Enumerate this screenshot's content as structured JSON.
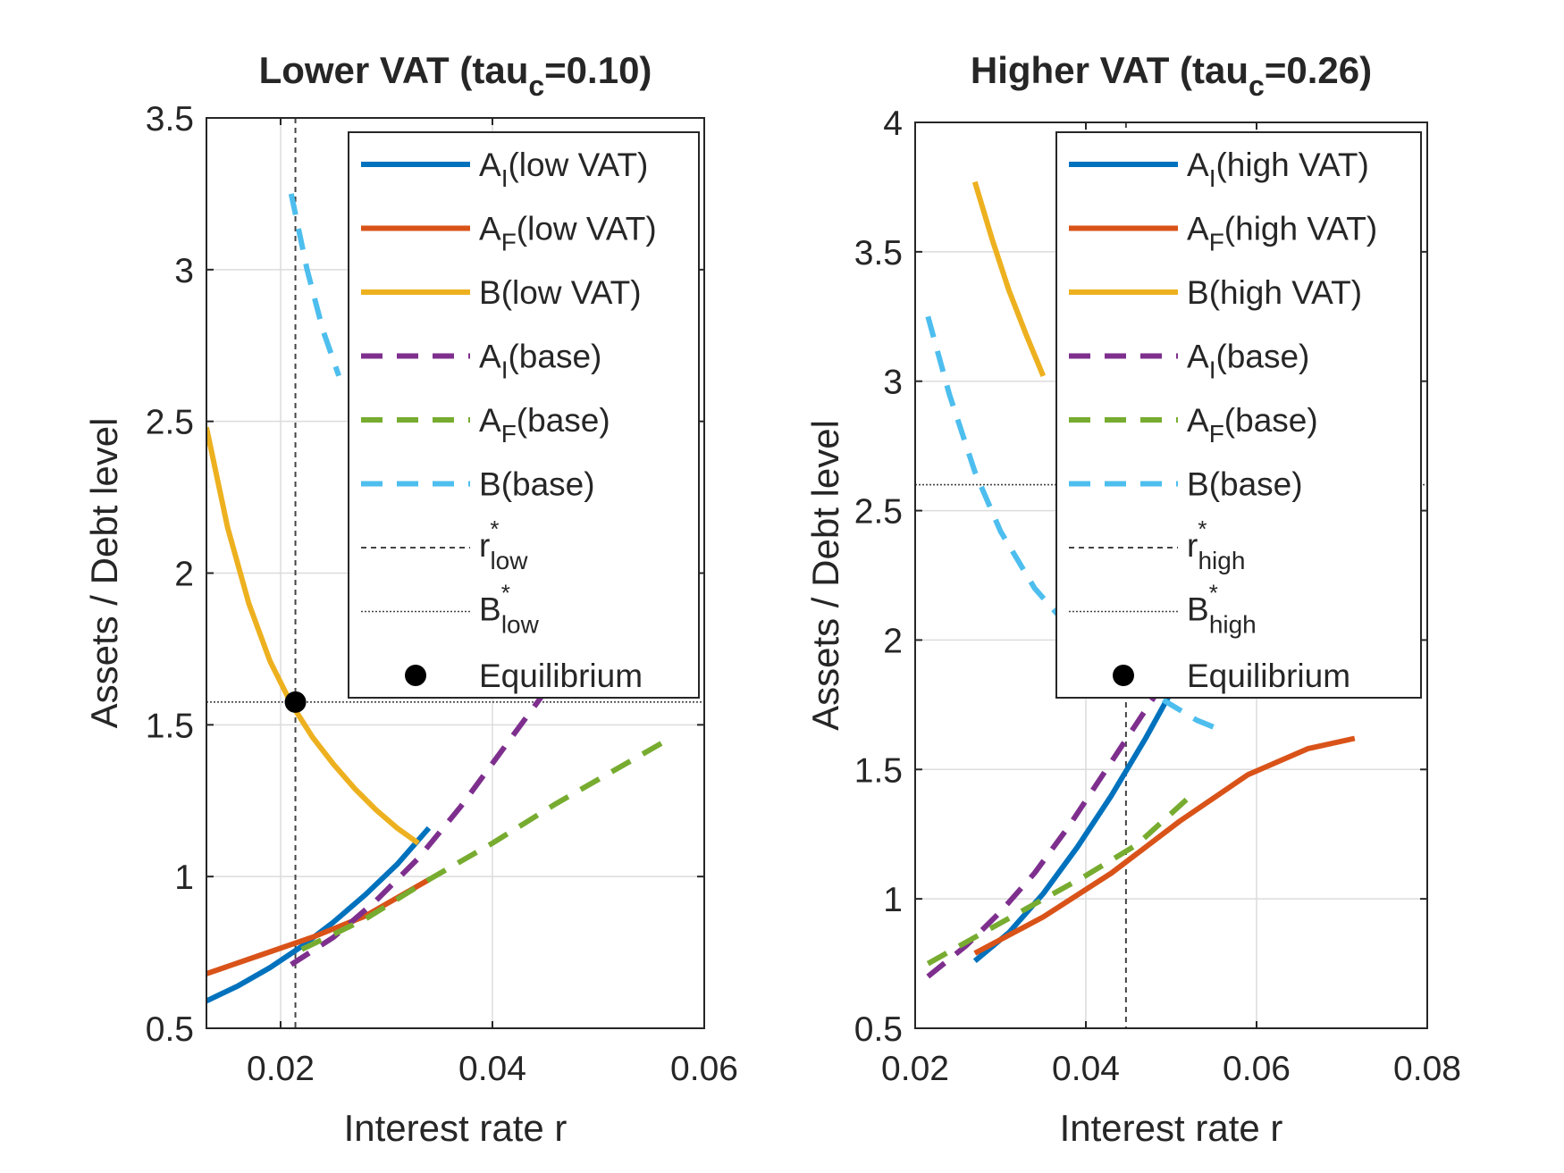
{
  "chart_data": [
    {
      "type": "line",
      "title": "Lower VAT (tau",
      "title_sub": "c",
      "title_tail": "=0.10)",
      "xlabel": "Interest rate r",
      "ylabel": "Assets / Debt level",
      "xlim": [
        0.013,
        0.06
      ],
      "ylim": [
        0.5,
        3.5
      ],
      "xticks": [
        0.02,
        0.04,
        0.06
      ],
      "xtick_labels": [
        "0.02",
        "0.04",
        "0.06"
      ],
      "yticks": [
        0.5,
        1,
        1.5,
        2,
        2.5,
        3,
        3.5
      ],
      "ytick_labels": [
        "0.5",
        "1",
        "1.5",
        "2",
        "2.5",
        "3",
        "3.5"
      ],
      "grid": true,
      "legend_position": "top-right",
      "series": [
        {
          "name": "A_I(low VAT)",
          "main": "A",
          "sub": "I",
          "tail": "(low VAT)",
          "color": "#0072BD",
          "dash": "solid",
          "x": [
            0.013,
            0.016,
            0.019,
            0.022,
            0.025,
            0.028,
            0.031,
            0.034
          ],
          "y": [
            0.59,
            0.64,
            0.7,
            0.77,
            0.85,
            0.94,
            1.04,
            1.16
          ]
        },
        {
          "name": "A_F(low VAT)",
          "main": "A",
          "sub": "F",
          "tail": "(low VAT)",
          "color": "#D95319",
          "dash": "solid",
          "x": [
            0.013,
            0.018,
            0.023,
            0.028,
            0.034
          ],
          "y": [
            0.68,
            0.74,
            0.8,
            0.87,
            0.99
          ]
        },
        {
          "name": "B(low VAT)",
          "main": "B",
          "sub": "",
          "tail": "(low VAT)",
          "color": "#EDB120",
          "dash": "solid",
          "x": [
            0.013,
            0.015,
            0.017,
            0.019,
            0.021,
            0.023,
            0.025,
            0.027,
            0.029,
            0.031,
            0.033
          ],
          "y": [
            2.48,
            2.15,
            1.9,
            1.71,
            1.57,
            1.46,
            1.37,
            1.29,
            1.22,
            1.16,
            1.11
          ]
        },
        {
          "name": "A_I(base)",
          "main": "A",
          "sub": "I",
          "tail": "(base)",
          "color": "#7E2F8E",
          "dash": "dashed",
          "x": [
            0.021,
            0.025,
            0.029,
            0.033,
            0.037,
            0.041,
            0.045
          ],
          "y": [
            0.71,
            0.8,
            0.92,
            1.06,
            1.23,
            1.42,
            1.61
          ]
        },
        {
          "name": "A_F(base)",
          "main": "A",
          "sub": "F",
          "tail": "(base)",
          "color": "#77AC30",
          "dash": "dashed",
          "x": [
            0.022,
            0.028,
            0.034,
            0.04,
            0.046,
            0.052,
            0.056
          ],
          "y": [
            0.76,
            0.86,
            0.99,
            1.11,
            1.24,
            1.36,
            1.44
          ]
        },
        {
          "name": "B(base)",
          "main": "B",
          "sub": "",
          "tail": "(base)",
          "color": "#4DBEEE",
          "dash": "dashed",
          "x": [
            0.021,
            0.0225,
            0.024,
            0.0255
          ],
          "y": [
            3.25,
            3.0,
            2.8,
            2.65
          ]
        }
      ],
      "r_star": 0.0214,
      "B_star": 1.575,
      "r_star_label": {
        "main": "r",
        "sup": "*",
        "sub": "low"
      },
      "B_star_label": {
        "main": "B",
        "sup": "*",
        "sub": "low"
      },
      "equilibrium_label": "Equilibrium",
      "equilibrium": {
        "x": 0.0214,
        "y": 1.575
      }
    },
    {
      "type": "line",
      "title": "Higher VAT (tau",
      "title_sub": "c",
      "title_tail": "=0.26)",
      "xlabel": "Interest rate r",
      "ylabel": "Assets / Debt level",
      "xlim": [
        0.02,
        0.08
      ],
      "ylim": [
        0.5,
        4.0
      ],
      "xticks": [
        0.02,
        0.04,
        0.06,
        0.08
      ],
      "xtick_labels": [
        "0.02",
        "0.04",
        "0.06",
        "0.08"
      ],
      "yticks": [
        0.5,
        1,
        1.5,
        2,
        2.5,
        3,
        3.5,
        4
      ],
      "ytick_labels": [
        "0.5",
        "1",
        "1.5",
        "2",
        "2.5",
        "3",
        "3.5",
        "4"
      ],
      "grid": true,
      "legend_position": "top-right",
      "series": [
        {
          "name": "A_I(high VAT)",
          "main": "A",
          "sub": "I",
          "tail": "(high VAT)",
          "color": "#0072BD",
          "dash": "solid",
          "x": [
            0.027,
            0.031,
            0.035,
            0.039,
            0.043,
            0.047,
            0.05
          ],
          "y": [
            0.76,
            0.87,
            1.02,
            1.2,
            1.4,
            1.62,
            1.8
          ]
        },
        {
          "name": "A_F(high VAT)",
          "main": "A",
          "sub": "F",
          "tail": "(high VAT)",
          "color": "#D95319",
          "dash": "solid",
          "x": [
            0.027,
            0.035,
            0.043,
            0.051,
            0.059,
            0.066,
            0.0715
          ],
          "y": [
            0.79,
            0.93,
            1.1,
            1.3,
            1.48,
            1.58,
            1.62
          ]
        },
        {
          "name": "B(high VAT)",
          "main": "B",
          "sub": "",
          "tail": "(high VAT)",
          "color": "#EDB120",
          "dash": "solid",
          "x": [
            0.027,
            0.029,
            0.031,
            0.033,
            0.035
          ],
          "y": [
            3.77,
            3.55,
            3.35,
            3.18,
            3.02
          ]
        },
        {
          "name": "A_I(base)",
          "main": "A",
          "sub": "I",
          "tail": "(base)",
          "color": "#7E2F8E",
          "dash": "dashed",
          "x": [
            0.0215,
            0.026,
            0.03,
            0.034,
            0.038,
            0.042,
            0.046,
            0.05
          ],
          "y": [
            0.7,
            0.82,
            0.95,
            1.1,
            1.28,
            1.48,
            1.68,
            1.88
          ]
        },
        {
          "name": "A_F(base)",
          "main": "A",
          "sub": "F",
          "tail": "(base)",
          "color": "#77AC30",
          "dash": "dashed",
          "x": [
            0.0215,
            0.028,
            0.034,
            0.04,
            0.046,
            0.052
          ],
          "y": [
            0.75,
            0.87,
            0.98,
            1.09,
            1.21,
            1.39
          ]
        },
        {
          "name": "B(base)",
          "main": "B",
          "sub": "",
          "tail": "(base)",
          "color": "#4DBEEE",
          "dash": "dashed",
          "x": [
            0.0215,
            0.024,
            0.027,
            0.03,
            0.034,
            0.038,
            0.042,
            0.046,
            0.05,
            0.053,
            0.056
          ],
          "y": [
            3.25,
            2.95,
            2.65,
            2.42,
            2.2,
            2.05,
            1.93,
            1.83,
            1.75,
            1.69,
            1.65
          ]
        }
      ],
      "r_star": 0.0447,
      "B_star": 2.6,
      "r_star_label": {
        "main": "r",
        "sup": "*",
        "sub": "high"
      },
      "B_star_label": {
        "main": "B",
        "sup": "*",
        "sub": "high"
      },
      "equilibrium_label": "Equilibrium",
      "equilibrium": {
        "x": 0.0447,
        "y": 2.6
      }
    }
  ]
}
